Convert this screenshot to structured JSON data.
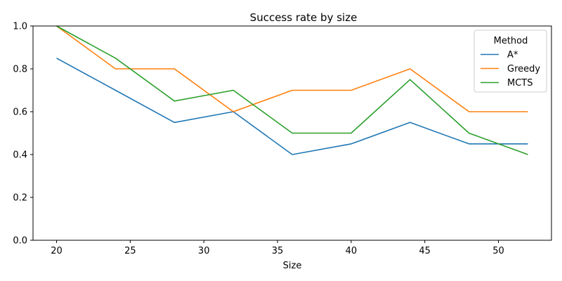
{
  "chart_data": {
    "type": "line",
    "title": "Success rate by size",
    "xlabel": "Size",
    "ylabel": "",
    "x": [
      20,
      24,
      28,
      32,
      36,
      40,
      44,
      48,
      52
    ],
    "xlim": [
      18.4,
      53.6
    ],
    "ylim": [
      0,
      1
    ],
    "xticks": [
      20,
      25,
      30,
      35,
      40,
      45,
      50
    ],
    "xtick_labels": [
      "20",
      "25",
      "30",
      "35",
      "40",
      "45",
      "50"
    ],
    "yticks": [
      0,
      0.2,
      0.4,
      0.6,
      0.8,
      1.0
    ],
    "ytick_labels": [
      "0.0",
      "0.2",
      "0.4",
      "0.6",
      "0.8",
      "1.0"
    ],
    "grid": false,
    "legend": {
      "title": "Method",
      "placement": "upper right"
    },
    "series": [
      {
        "name": "A*",
        "color": "#1f77b4",
        "values": [
          0.85,
          0.7,
          0.55,
          0.6,
          0.4,
          0.45,
          0.55,
          0.45,
          0.45
        ]
      },
      {
        "name": "Greedy",
        "color": "#ff7f0e",
        "values": [
          1.0,
          0.8,
          0.8,
          0.6,
          0.7,
          0.7,
          0.8,
          0.6,
          0.6
        ]
      },
      {
        "name": "MCTS",
        "color": "#2ca02c",
        "values": [
          1.0,
          0.85,
          0.65,
          0.7,
          0.5,
          0.5,
          0.75,
          0.5,
          0.4
        ]
      }
    ]
  }
}
